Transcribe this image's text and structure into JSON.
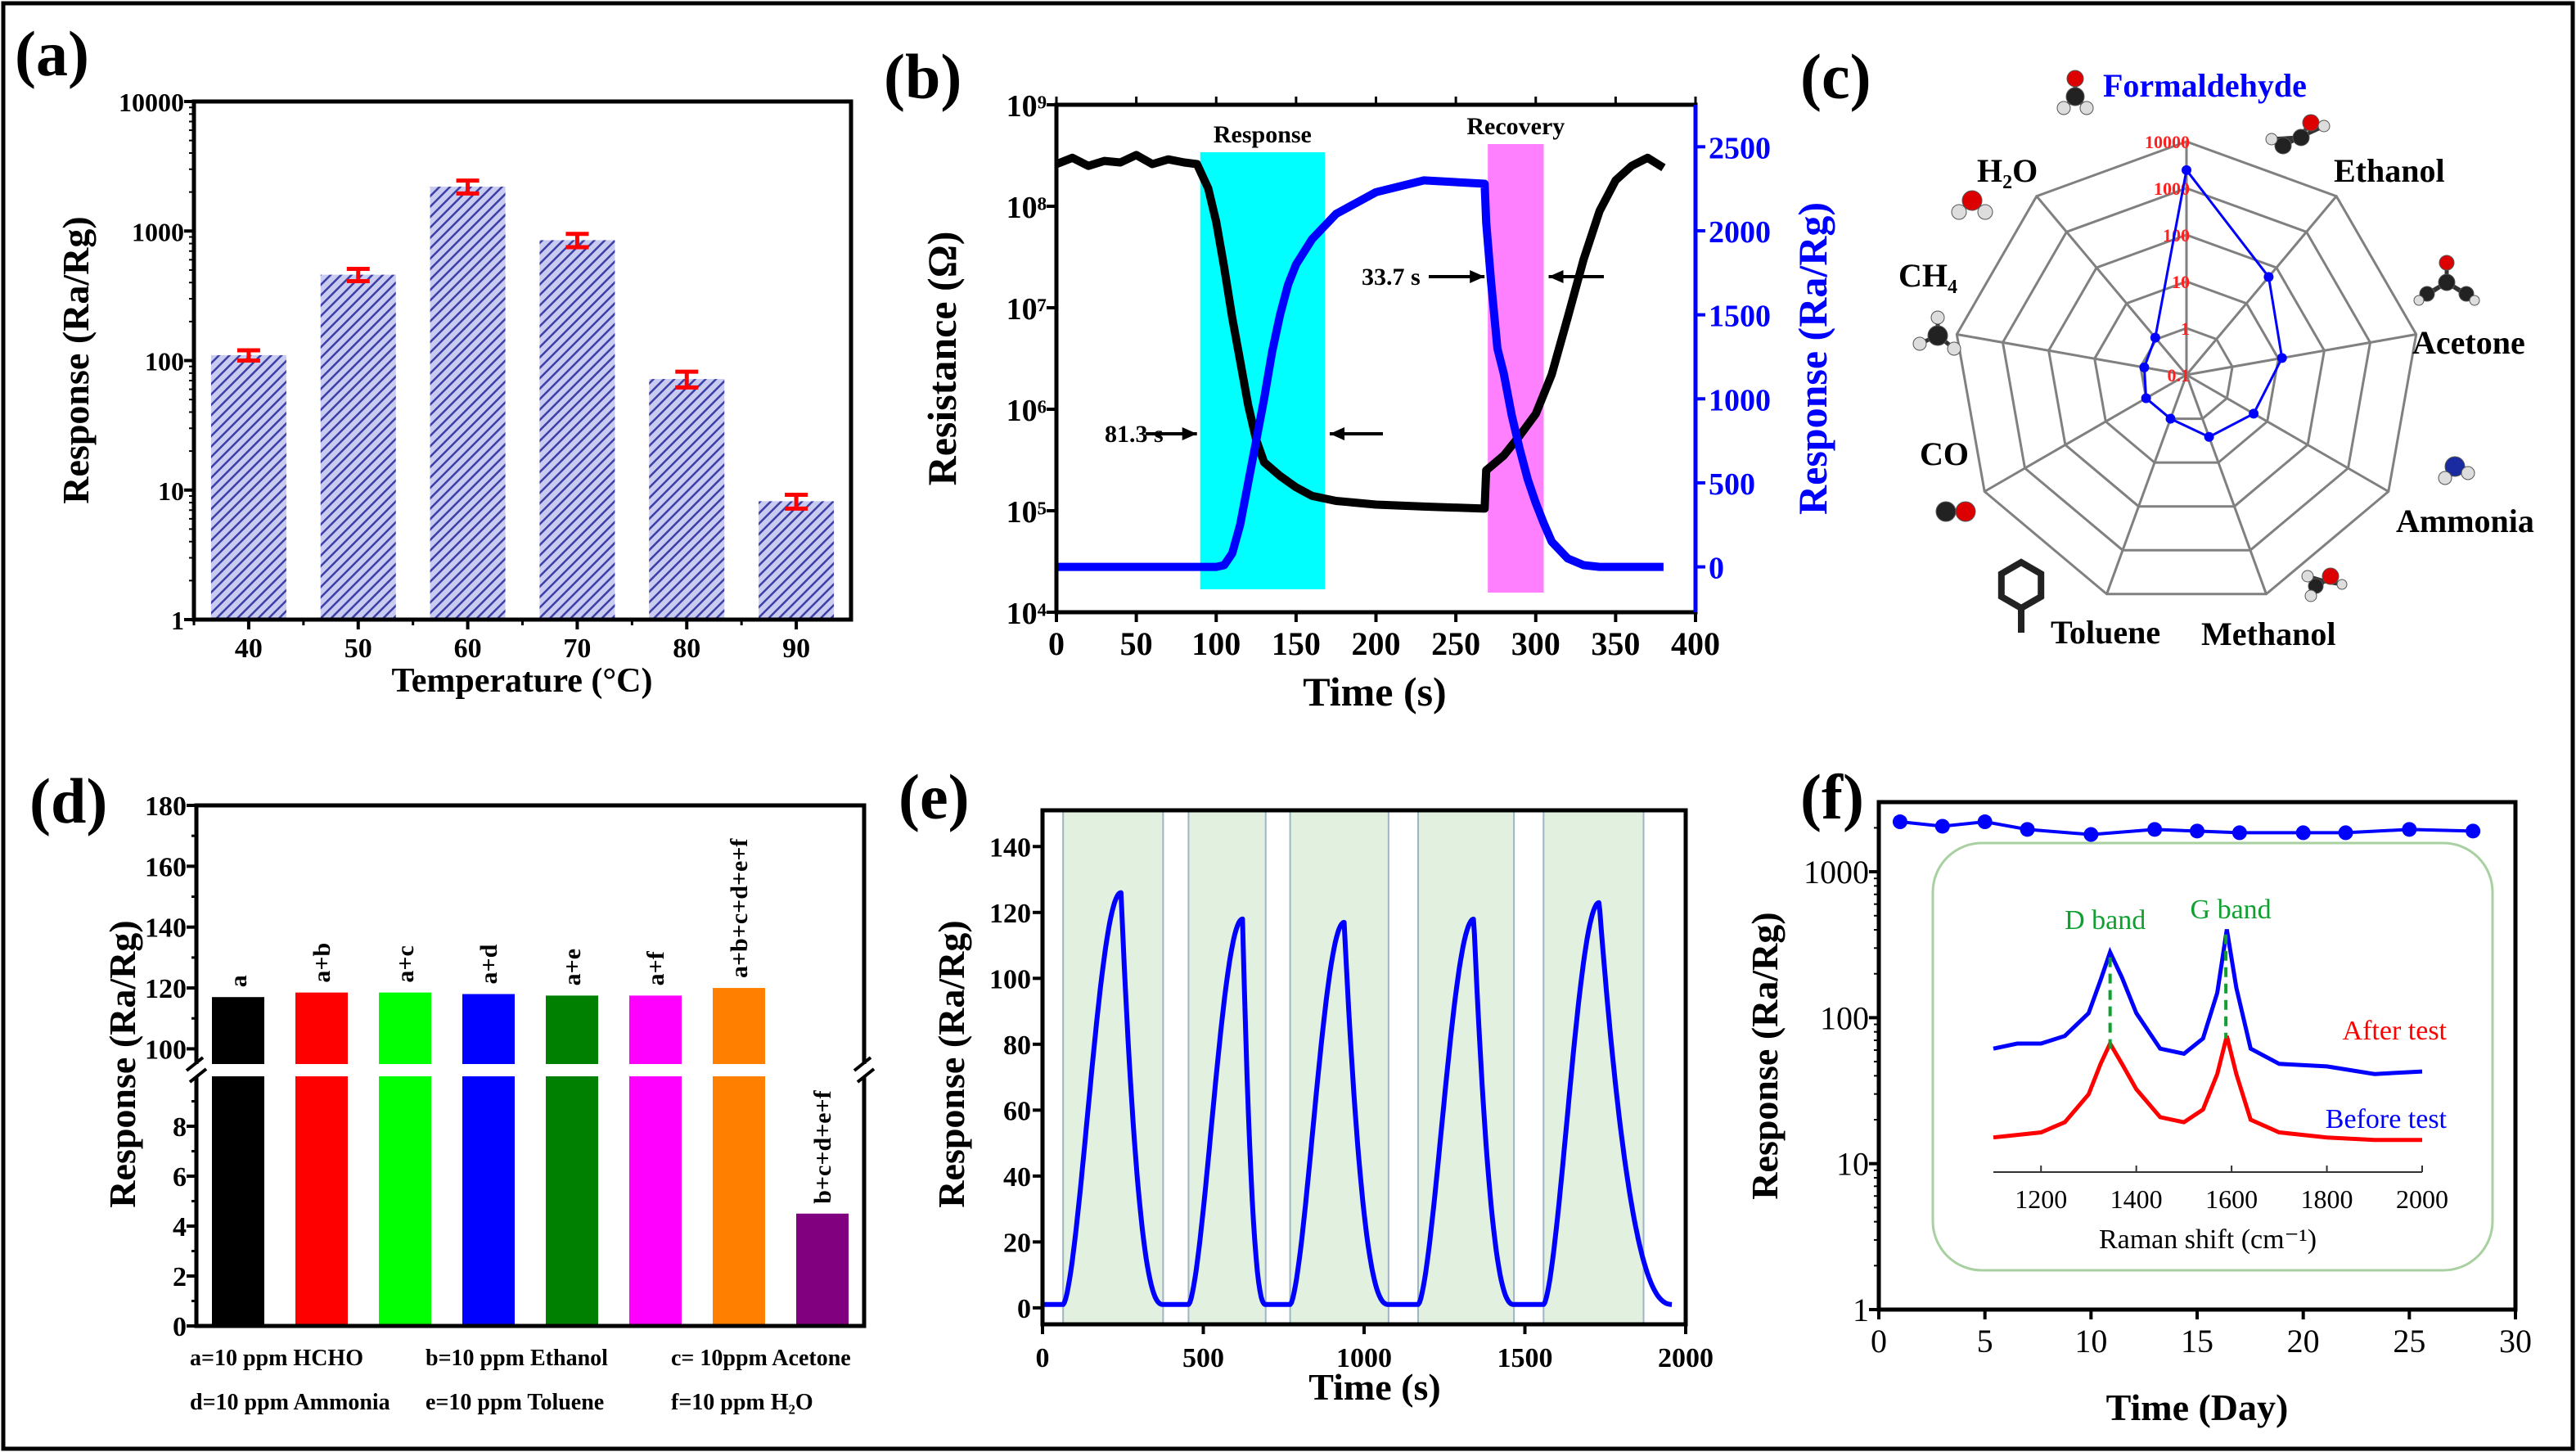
{
  "chart_data": [
    {
      "panel_label": "(a)",
      "type": "bar",
      "categories": [
        "40",
        "50",
        "60",
        "70",
        "80",
        "90"
      ],
      "values": [
        110,
        460,
        2200,
        850,
        72,
        8.2
      ],
      "errors": [
        10,
        50,
        250,
        100,
        10,
        1
      ],
      "xlabel": "Temperature (°C)",
      "ylabel": "Response (Ra/Rg)",
      "yscale": "log",
      "ylim": [
        1,
        10000
      ],
      "yticks": [
        1,
        10,
        100,
        1000,
        10000
      ],
      "ytick_labels": [
        "1",
        "10",
        "100",
        "1000",
        "10000"
      ],
      "colors": {
        "bar": "#3b3fa6",
        "bar_bg": "#c9cbf0",
        "error": "#ff0000"
      }
    },
    {
      "panel_label": "(b)",
      "type": "line",
      "xlabel": "Time (s)",
      "ylabel_left": "Resistance (Ω)",
      "ylabel_right": "Response (Ra/Rg)",
      "xlim": [
        0,
        400
      ],
      "xticks": [
        0,
        50,
        100,
        150,
        200,
        250,
        300,
        350,
        400
      ],
      "y_left": {
        "scale": "log",
        "lim": [
          10000,
          1000000000
        ],
        "ticks": [
          10000,
          100000,
          1000000,
          10000000,
          100000000,
          1000000000
        ],
        "tick_labels": [
          "10⁴",
          "10⁵",
          "10⁶",
          "10⁷",
          "10⁸",
          "10⁹"
        ]
      },
      "y_right": {
        "scale": "linear",
        "lim": [
          -270,
          2750
        ],
        "ticks": [
          0,
          500,
          1000,
          1500,
          2000,
          2500
        ],
        "tick_labels": [
          "0",
          "500",
          "1000",
          "1500",
          "2000",
          "2500"
        ]
      },
      "series": [
        {
          "name": "Resistance",
          "axis": "left",
          "color": "#000000",
          "x": [
            0,
            10,
            20,
            30,
            40,
            50,
            60,
            70,
            80,
            88,
            95,
            100,
            105,
            110,
            115,
            120,
            125,
            130,
            140,
            150,
            160,
            175,
            200,
            230,
            268,
            269,
            280,
            290,
            300,
            310,
            320,
            330,
            340,
            350,
            360,
            370,
            380
          ],
          "y": [
            260000000.0,
            300000000.0,
            250000000.0,
            280000000.0,
            270000000.0,
            320000000.0,
            260000000.0,
            290000000.0,
            270000000.0,
            260000000.0,
            150000000.0,
            70000000.0,
            25000000.0,
            8000000.0,
            3000000.0,
            1100000.0,
            500000.0,
            300000.0,
            220000.0,
            170000.0,
            140000.0,
            125000.0,
            115000.0,
            110000.0,
            105000.0,
            250000.0,
            350000.0,
            550000.0,
            900000.0,
            2200000.0,
            8000000.0,
            30000000.0,
            90000000.0,
            180000000.0,
            250000000.0,
            300000000.0,
            240000000.0
          ]
        },
        {
          "name": "Response",
          "axis": "right",
          "color": "#0000ff",
          "x": [
            0,
            100,
            105,
            110,
            115,
            120,
            125,
            130,
            135,
            140,
            145,
            150,
            160,
            175,
            200,
            230,
            268,
            269,
            272,
            276,
            280,
            285,
            290,
            295,
            300,
            305,
            310,
            320,
            330,
            340,
            380
          ],
          "y": [
            0,
            0,
            10,
            80,
            250,
            500,
            750,
            1000,
            1280,
            1500,
            1680,
            1800,
            1950,
            2100,
            2230,
            2300,
            2280,
            2050,
            1700,
            1300,
            1150,
            900,
            700,
            520,
            380,
            260,
            150,
            50,
            10,
            0,
            0
          ]
        }
      ],
      "regions": [
        {
          "label": "Response",
          "x": [
            90,
            168
          ],
          "color": "#00ffff"
        },
        {
          "label": "Recovery",
          "x": [
            270,
            305
          ],
          "color": "#ff80ff"
        }
      ],
      "annotations": [
        {
          "text": "81.3 s"
        },
        {
          "text": "33.7 s"
        }
      ]
    },
    {
      "panel_label": "(c)",
      "type": "radar",
      "axes": [
        "Formaldehyde",
        "Ethanol",
        "Acetone",
        "Ammonia",
        "Methanol",
        "Toluene",
        "CO",
        "CH₄",
        "H₂O"
      ],
      "values": [
        2450,
        55,
        12,
        4.6,
        2.6,
        1.0,
        1.0,
        0.83,
        1.1
      ],
      "scale": "log",
      "rings": [
        0.1,
        1,
        10,
        100,
        1000,
        10000
      ],
      "ring_labels": [
        "0.1",
        "1",
        "10",
        "100",
        "1000",
        "10000"
      ],
      "colors": {
        "series": "#0000ff",
        "grid": "#808080",
        "ring_label": "#ff2020",
        "highlight_axis": "#0000ff"
      }
    },
    {
      "panel_label": "(d)",
      "type": "bar",
      "categories": [
        "a",
        "a+b",
        "a+c",
        "a+d",
        "a+e",
        "a+f",
        "a+b+c+d+e+f",
        "b+c+d+e+f"
      ],
      "values": [
        117,
        118.5,
        118.5,
        118,
        117.5,
        117.5,
        120,
        4.5
      ],
      "colors": [
        "#000000",
        "#ff0000",
        "#00ff00",
        "#0000ff",
        "#008000",
        "#ff00ff",
        "#ff8000",
        "#800080"
      ],
      "ylabel": "Response (Ra/Rg)",
      "y_break": {
        "lower": [
          0,
          10
        ],
        "upper": [
          95,
          180
        ]
      },
      "yticks_lower": [
        0,
        2,
        4,
        6,
        8
      ],
      "yticks_upper": [
        100,
        120,
        140,
        160,
        180
      ],
      "legend": [
        "a=10 ppm HCHO",
        "b=10 ppm Ethanol",
        "c= 10ppm Acetone",
        "d=10 ppm Ammonia",
        "e=10 ppm Toluene",
        "f=10 ppm H₂O"
      ]
    },
    {
      "panel_label": "(e)",
      "type": "line",
      "xlabel": "Time (s)",
      "ylabel": "Response (Ra/Rg)",
      "xlim": [
        0,
        2000
      ],
      "ylim": [
        -5,
        151
      ],
      "xticks": [
        0,
        500,
        1000,
        1500,
        2000
      ],
      "yticks": [
        0,
        20,
        40,
        60,
        80,
        100,
        120,
        140
      ],
      "gas_on_bands": [
        [
          64,
          375
        ],
        [
          454,
          694
        ],
        [
          770,
          1076
        ],
        [
          1168,
          1466
        ],
        [
          1558,
          1869
        ]
      ],
      "peaks": [
        {
          "t": 244,
          "v": 126
        },
        {
          "t": 622,
          "v": 118
        },
        {
          "t": 938,
          "v": 117
        },
        {
          "t": 1341,
          "v": 118
        },
        {
          "t": 1731,
          "v": 123
        }
      ],
      "baseline": 1,
      "colors": {
        "line": "#0000ff",
        "band": "#e2f0df",
        "band_edge": "#9fb4c4"
      }
    },
    {
      "panel_label": "(f)",
      "type": "line",
      "xlabel": "Time (Day)",
      "ylabel": "Response (Ra/Rg)",
      "xlim": [
        0,
        30
      ],
      "xticks": [
        0,
        5,
        10,
        15,
        20,
        25,
        30
      ],
      "yscale": "log",
      "ylim": [
        1,
        3000
      ],
      "yticks": [
        1,
        10,
        100,
        1000
      ],
      "ytick_labels": [
        "1",
        "10",
        "100",
        "1000"
      ],
      "x": [
        1,
        3,
        5,
        7,
        10,
        13,
        15,
        17,
        20,
        22,
        25,
        28
      ],
      "y": [
        2200,
        2050,
        2200,
        1950,
        1800,
        1950,
        1900,
        1850,
        1850,
        1850,
        1950,
        1900
      ],
      "color": "#0000ff",
      "inset": {
        "xlabel": "Raman shift (cm⁻¹)",
        "xlim": [
          1100,
          2000
        ],
        "xticks": [
          1200,
          1400,
          1600,
          1800,
          2000
        ],
        "series": [
          {
            "name": "Before test",
            "color": "#0000ff",
            "x": [
              1100,
              1150,
              1200,
              1250,
              1300,
              1325,
              1345,
              1370,
              1400,
              1450,
              1500,
              1540,
              1570,
              1590,
              1610,
              1640,
              1700,
              1800,
              1900,
              2000
            ],
            "y": [
              48,
              50,
              50,
              53,
              62,
              75,
              86,
              76,
              62,
              48,
              46,
              52,
              70,
              95,
              72,
              48,
              42,
              41,
              38,
              39
            ]
          },
          {
            "name": "After test",
            "color": "#ff0000",
            "x": [
              1100,
              1150,
              1200,
              1250,
              1300,
              1325,
              1345,
              1370,
              1400,
              1450,
              1500,
              1540,
              1570,
              1590,
              1610,
              1640,
              1700,
              1800,
              1900,
              2000
            ],
            "y": [
              13,
              14,
              15,
              19,
              30,
              42,
              50,
              42,
              32,
              21,
              19,
              24,
              38,
              53,
              38,
              20,
              15,
              13,
              12,
              12
            ]
          }
        ],
        "bands": [
          {
            "label": "D band",
            "x": 1345
          },
          {
            "label": "G band",
            "x": 1588
          }
        ],
        "colors": {
          "band": "#10a030",
          "frame": "#a8d0a0"
        }
      }
    }
  ]
}
